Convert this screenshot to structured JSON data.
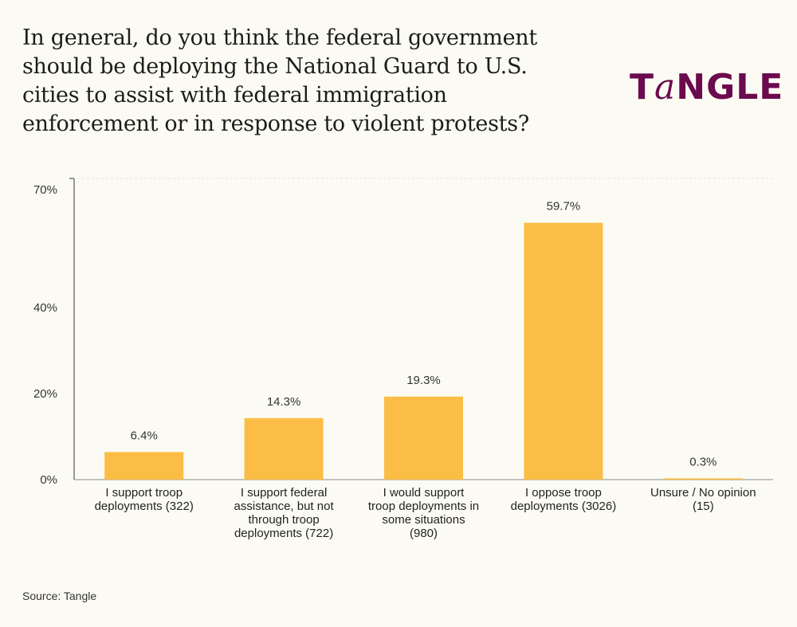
{
  "title": "In general, do you think the federal government should be deploying the National Guard to U.S. cities to assist with federal immigration enforcement or in response to violent protests?",
  "logo": "TANGLE",
  "source": "Source: Tangle",
  "colors": {
    "bar": "#fbbd45",
    "logo": "#6b0a4e",
    "background": "#fcfbf3"
  },
  "chart_data": {
    "type": "bar",
    "title": "In general, do you think the federal government should be deploying the National Guard to U.S. cities to assist with federal immigration enforcement or in response to violent protests?",
    "categories": [
      [
        "I support troop",
        "deployments (322)"
      ],
      [
        "I support federal",
        "assistance, but not",
        "through troop",
        "deployments (722)"
      ],
      [
        "I would support",
        "troop deployments in",
        "some situations",
        "(980)"
      ],
      [
        "I oppose troop",
        "deployments (3026)"
      ],
      [
        "Unsure / No opinion",
        "(15)"
      ]
    ],
    "values": [
      6.4,
      14.3,
      19.3,
      59.7,
      0.3
    ],
    "data_labels": [
      "6.4%",
      "14.3%",
      "19.3%",
      "59.7%",
      "0.3%"
    ],
    "yticks": [
      0,
      20,
      40,
      70
    ],
    "ytick_labels": [
      "0%",
      "20%",
      "40%",
      "70%"
    ],
    "ylim": [
      0,
      70
    ],
    "grid": false
  }
}
